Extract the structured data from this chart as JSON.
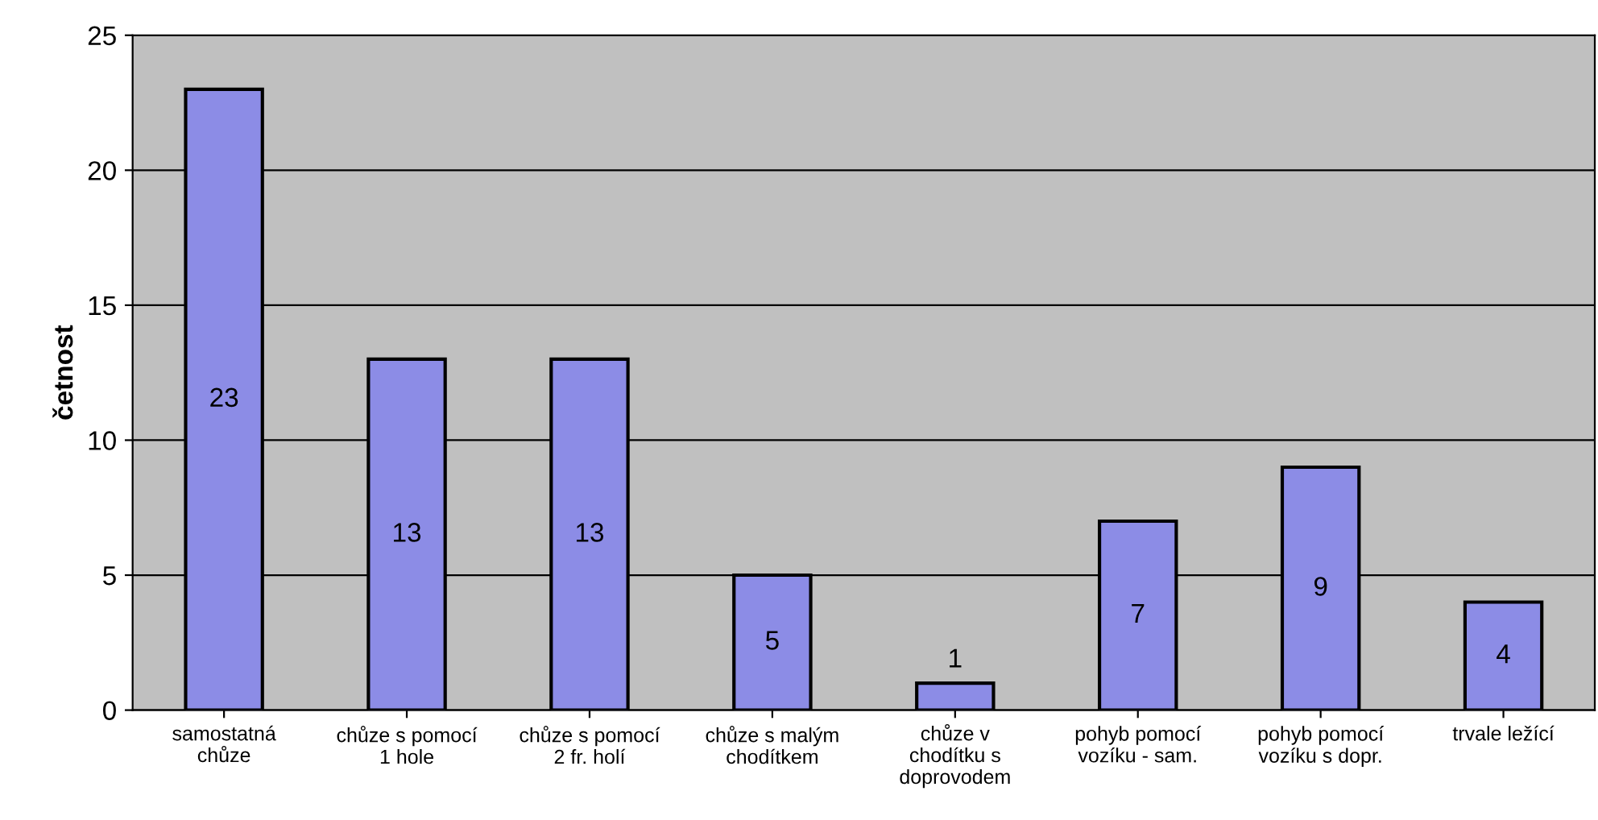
{
  "chart_data": {
    "type": "bar",
    "ylabel": "četnost",
    "categories": [
      "samostatná\nchůze",
      "chůze s pomocí\n1 hole",
      "chůze s pomocí\n2 fr. holí",
      "chůze s malým\nchodítkem",
      "chůze v\nchodítku s\ndoprovodem",
      "pohyb pomocí\nvozíku - sam.",
      "pohyb pomocí\nvozíku s dopr.",
      "trvale ležící"
    ],
    "values": [
      23,
      13,
      13,
      5,
      1,
      7,
      9,
      4
    ],
    "color": "#8c8ce6",
    "ylim": [
      0,
      25
    ],
    "yticks": [
      0,
      5,
      10,
      15,
      20,
      25
    ],
    "grid": "y",
    "data_labels": true,
    "legend": false
  }
}
